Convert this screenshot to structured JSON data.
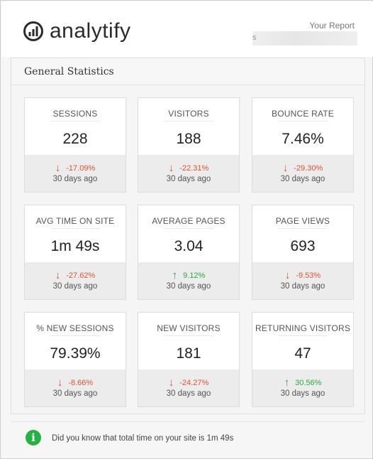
{
  "header": {
    "logo_text": "analytify",
    "report_label": "Your Report",
    "report_value_obscured": "s"
  },
  "panel": {
    "title": "General Statistics"
  },
  "stats": [
    {
      "label": "SESSIONS",
      "value": "228",
      "change": "-17.09%",
      "direction": "down",
      "period": "30 days ago"
    },
    {
      "label": "VISITORS",
      "value": "188",
      "change": "-22.31%",
      "direction": "down",
      "period": "30 days ago"
    },
    {
      "label": "BOUNCE RATE",
      "value": "7.46%",
      "change": "-29.30%",
      "direction": "down",
      "period": "30 days ago"
    },
    {
      "label": "AVG TIME ON SITE",
      "value": "1m 49s",
      "change": "-27.62%",
      "direction": "down",
      "period": "30 days ago"
    },
    {
      "label": "AVERAGE PAGES",
      "value": "3.04",
      "change": "9.12%",
      "direction": "up",
      "period": "30 days ago"
    },
    {
      "label": "PAGE VIEWS",
      "value": "693",
      "change": "-9.53%",
      "direction": "down",
      "period": "30 days ago"
    },
    {
      "label": "% NEW SESSIONS",
      "value": "79.39%",
      "change": "-8.66%",
      "direction": "down",
      "period": "30 days ago"
    },
    {
      "label": "NEW VISITORS",
      "value": "181",
      "change": "-24.27%",
      "direction": "down",
      "period": "30 days ago"
    },
    {
      "label": "RETURNING VISITORS",
      "value": "47",
      "change": "30.56%",
      "direction": "up",
      "period": "30 days ago"
    }
  ],
  "footer": {
    "info_icon": "info-icon",
    "message": "Did you know that total time on your site is 1m 49s"
  },
  "colors": {
    "negative": "#e0532f",
    "positive": "#26a93d",
    "info": "#27b045"
  }
}
